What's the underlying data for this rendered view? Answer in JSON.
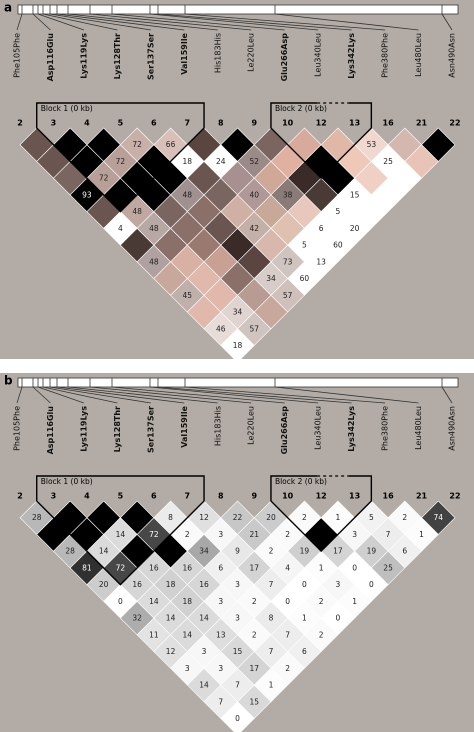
{
  "panels": [
    {
      "label": "a",
      "snps": [
        {
          "name": "Phe105Phe",
          "bold": false
        },
        {
          "name": "Asp116Glu",
          "bold": true
        },
        {
          "name": "Lys119Lys",
          "bold": true
        },
        {
          "name": "Lys128Thr",
          "bold": true
        },
        {
          "name": "Ser137Ser",
          "bold": true
        },
        {
          "name": "Val159Ile",
          "bold": true
        },
        {
          "name": "His183His",
          "bold": false
        },
        {
          "name": "Le220Leu",
          "bold": false
        },
        {
          "name": "Glu266Asp",
          "bold": true
        },
        {
          "name": "Leu340Leu",
          "bold": false
        },
        {
          "name": "Lys342Lys",
          "bold": true
        },
        {
          "name": "Phe380Phe",
          "bold": false
        },
        {
          "name": "Leu480Leu",
          "bold": false
        },
        {
          "name": "Asn490Asn",
          "bold": false
        }
      ],
      "markers": [
        2,
        3,
        4,
        5,
        6,
        7,
        8,
        9,
        10,
        12,
        13,
        16,
        21,
        22
      ],
      "blocks": [
        {
          "label": "Block 1 (0 kb)",
          "first_marker": 3,
          "last_marker": 7
        },
        {
          "label": "Block 2 (0 kb)",
          "first_marker": 10,
          "last_marker": 13
        }
      ],
      "cells": {
        "labels": [
          [
            null,
            null,
            null,
            72,
            66,
            null,
            null,
            null,
            null,
            null,
            53,
            null,
            null
          ],
          [
            null,
            null,
            72,
            null,
            18,
            24,
            52,
            null,
            null,
            null,
            25,
            null
          ],
          [
            null,
            72,
            null,
            null,
            null,
            null,
            null,
            null,
            null,
            null,
            null
          ],
          [
            93,
            null,
            null,
            48,
            null,
            40,
            38,
            null,
            15,
            null
          ],
          [
            null,
            48,
            null,
            null,
            null,
            null,
            null,
            5,
            null
          ],
          [
            4,
            48,
            null,
            null,
            42,
            null,
            6,
            20
          ],
          [
            null,
            null,
            null,
            null,
            null,
            5,
            60
          ],
          [
            48,
            null,
            null,
            null,
            73,
            13
          ],
          [
            null,
            null,
            null,
            34,
            60
          ],
          [
            45,
            null,
            null,
            57
          ],
          [
            null,
            34,
            null
          ],
          [
            46,
            57
          ],
          [
            18
          ]
        ],
        "colors": [
          [
            "#6b5550",
            "#000000",
            "#000000",
            "#c8b0a8",
            "#d8c0b8",
            "#5a4540",
            "#000000",
            "#7a6560",
            "#d8aa9c",
            "#e0b8a8",
            "#f0d8d0",
            "#d4b8b0",
            "#000000"
          ],
          [
            "#6b5550",
            "#000000",
            "#b8a098",
            "#000000",
            "#ffffff",
            "#ffffff",
            "#9a8a88",
            "#e0b0a0",
            "#000000",
            "#f0c8b8",
            "#ffffff",
            "#e8c4b8"
          ],
          [
            "#7a6560",
            "#b8a098",
            "#000000",
            "#000000",
            "#6b5550",
            "#a89090",
            "#d0a898",
            "#3a2a28",
            "#000000",
            "#f0d0c4",
            "#ffffff"
          ],
          [
            "#000000",
            "#000000",
            "#000000",
            "#a09090",
            "#7a6560",
            "#b09898",
            "#8a7a78",
            "#4a3a36",
            "#ffffff",
            "#ffffff"
          ],
          [
            "#6b5550",
            "#c0a8a0",
            "#7a6560",
            "#8a7068",
            "#d0b0a4",
            "#c8a898",
            "#e8c8bc",
            "#ffffff",
            "#ffffff"
          ],
          [
            "#ffffff",
            "#b8a8a4",
            "#8a7068",
            "#6b5550",
            "#c4b0a8",
            "#e0c0b0",
            "#ffffff",
            "#ffffff"
          ],
          [
            "#4a3a36",
            "#8a7068",
            "#9a7a70",
            "#3a2a28",
            "#d8b8ac",
            "#ffffff",
            "#ffffff"
          ],
          [
            "#b0a0a0",
            "#d8b0a4",
            "#c8a094",
            "#5a4540",
            "#d0c4c0",
            "#ffffff"
          ],
          [
            "#c8a89c",
            "#e0b8ac",
            "#8a7068",
            "#d8ccc8",
            "#ffffff"
          ],
          [
            "#c0b0ac",
            "#e0b8ac",
            "#b89c94",
            "#cfc0bc"
          ],
          [
            "#e0b8ac",
            "#e0d4d0",
            "#c8a89c"
          ],
          [
            "#e8dcd8",
            "#d0c4c0"
          ],
          [
            "#ffffff"
          ]
        ]
      }
    },
    {
      "label": "b",
      "snps": [
        {
          "name": "Phe105Phe",
          "bold": false
        },
        {
          "name": "Asp116Glu",
          "bold": true
        },
        {
          "name": "Lys119Lys",
          "bold": true
        },
        {
          "name": "Lys128Thr",
          "bold": true
        },
        {
          "name": "Ser137Ser",
          "bold": true
        },
        {
          "name": "Val159Ile",
          "bold": true
        },
        {
          "name": "His183His",
          "bold": false
        },
        {
          "name": "Le220Leu",
          "bold": false
        },
        {
          "name": "Glu266Asp",
          "bold": true
        },
        {
          "name": "Leu340Leu",
          "bold": false
        },
        {
          "name": "Lys342Lys",
          "bold": true
        },
        {
          "name": "Phe380Phe",
          "bold": false
        },
        {
          "name": "Leu480Leu",
          "bold": false
        },
        {
          "name": "Asn490Asn",
          "bold": false
        }
      ],
      "markers": [
        2,
        3,
        4,
        5,
        6,
        7,
        8,
        9,
        10,
        12,
        13,
        16,
        21,
        22
      ],
      "blocks": [
        {
          "label": "Block 1 (0 kb)",
          "first_marker": 3,
          "last_marker": 7
        },
        {
          "label": "Block 2 (0 kb)",
          "first_marker": 10,
          "last_marker": 13
        }
      ],
      "cells": {
        "labels": [
          [
            28,
            null,
            null,
            null,
            8,
            12,
            22,
            20,
            2,
            1,
            5,
            2,
            74
          ],
          [
            null,
            null,
            14,
            72,
            2,
            3,
            21,
            2,
            null,
            3,
            7,
            1
          ],
          [
            28,
            14,
            null,
            null,
            34,
            9,
            2,
            19,
            17,
            19,
            6
          ],
          [
            81,
            72,
            16,
            16,
            6,
            17,
            4,
            1,
            0,
            25
          ],
          [
            20,
            16,
            18,
            16,
            3,
            7,
            0,
            3,
            0
          ],
          [
            0,
            14,
            18,
            3,
            2,
            0,
            2,
            1
          ],
          [
            32,
            14,
            14,
            3,
            8,
            1,
            0
          ],
          [
            11,
            14,
            13,
            2,
            7,
            2
          ],
          [
            12,
            3,
            15,
            7,
            6
          ],
          [
            3,
            3,
            17,
            2
          ],
          [
            14,
            7,
            1
          ],
          [
            7,
            15
          ],
          [
            0
          ]
        ],
        "color_scale": {
          "low": "#ffffff",
          "high": "#000000"
        }
      }
    }
  ]
}
